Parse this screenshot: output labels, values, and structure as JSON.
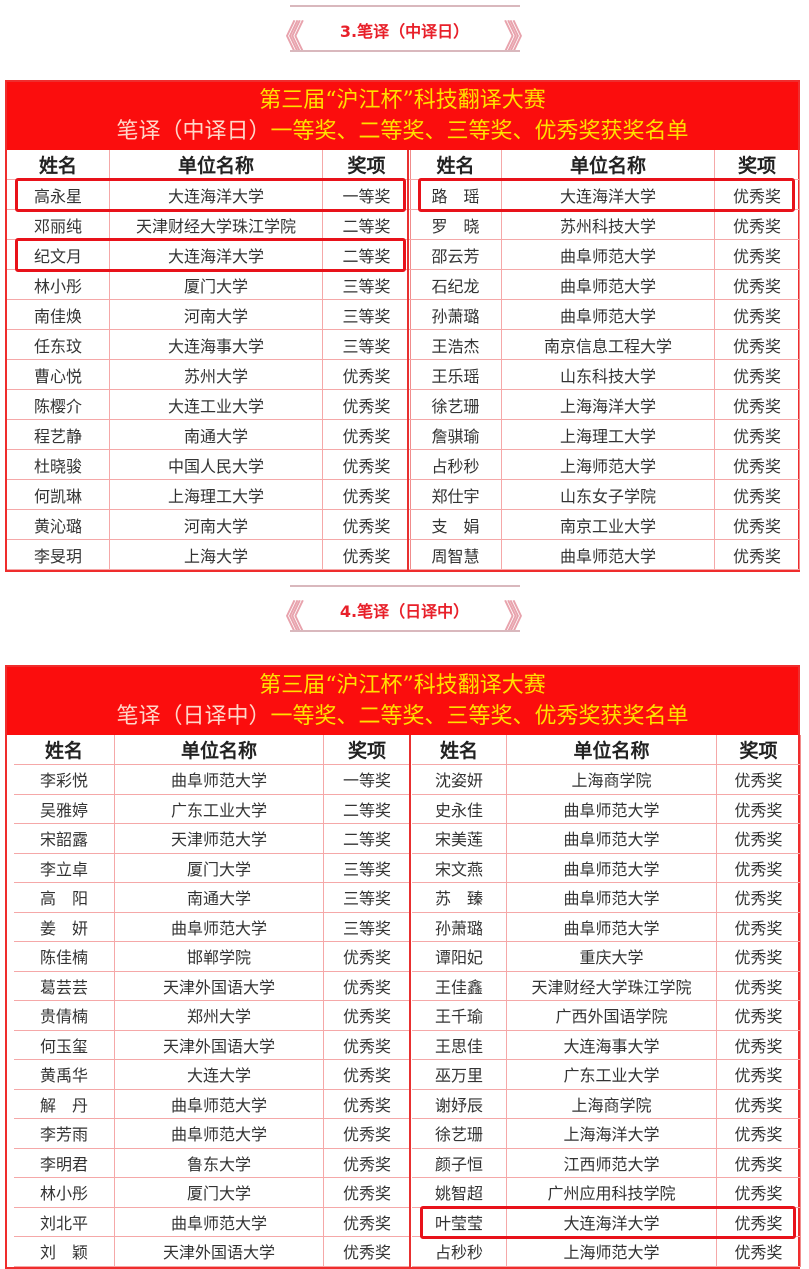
{
  "sections": [
    {
      "heading": "3.笔译（中译日）",
      "banner_line1": "第三届“沪江杯”科技翻译大赛",
      "banner_line2_category": "笔译（中译日）",
      "banner_line2_rest": "一等奖、二等奖、三等奖、优秀奖获奖名单",
      "columns": [
        "姓名",
        "单位名称",
        "奖项"
      ],
      "left": [
        [
          "高永星",
          "大连海洋大学",
          "一等奖"
        ],
        [
          "邓丽纯",
          "天津财经大学珠江学院",
          "二等奖"
        ],
        [
          "纪文月",
          "大连海洋大学",
          "二等奖"
        ],
        [
          "林小彤",
          "厦门大学",
          "三等奖"
        ],
        [
          "南佳焕",
          "河南大学",
          "三等奖"
        ],
        [
          "任东玟",
          "大连海事大学",
          "三等奖"
        ],
        [
          "曹心悦",
          "苏州大学",
          "优秀奖"
        ],
        [
          "陈樱介",
          "大连工业大学",
          "优秀奖"
        ],
        [
          "程艺静",
          "南通大学",
          "优秀奖"
        ],
        [
          "杜晓骏",
          "中国人民大学",
          "优秀奖"
        ],
        [
          "何凯琳",
          "上海理工大学",
          "优秀奖"
        ],
        [
          "黄沁璐",
          "河南大学",
          "优秀奖"
        ],
        [
          "李旻玥",
          "上海大学",
          "优秀奖"
        ]
      ],
      "right": [
        [
          "路　瑶",
          "大连海洋大学",
          "优秀奖"
        ],
        [
          "罗　晓",
          "苏州科技大学",
          "优秀奖"
        ],
        [
          "邵云芳",
          "曲阜师范大学",
          "优秀奖"
        ],
        [
          "石纪龙",
          "曲阜师范大学",
          "优秀奖"
        ],
        [
          "孙萧璐",
          "曲阜师范大学",
          "优秀奖"
        ],
        [
          "王浩杰",
          "南京信息工程大学",
          "优秀奖"
        ],
        [
          "王乐瑶",
          "山东科技大学",
          "优秀奖"
        ],
        [
          "徐艺珊",
          "上海海洋大学",
          "优秀奖"
        ],
        [
          "詹骐瑜",
          "上海理工大学",
          "优秀奖"
        ],
        [
          "占秒秒",
          "上海师范大学",
          "优秀奖"
        ],
        [
          "郑仕宇",
          "山东女子学院",
          "优秀奖"
        ],
        [
          "支　娟",
          "南京工业大学",
          "优秀奖"
        ],
        [
          "周智慧",
          "曲阜师范大学",
          "优秀奖"
        ]
      ]
    },
    {
      "heading": "4.笔译（日译中）",
      "banner_line1": "第三届“沪江杯”科技翻译大赛",
      "banner_line2_category": "笔译（日译中）",
      "banner_line2_rest": "一等奖、二等奖、三等奖、优秀奖获奖名单",
      "columns": [
        "姓名",
        "单位名称",
        "奖项"
      ],
      "left": [
        [
          "李彩悦",
          "曲阜师范大学",
          "一等奖"
        ],
        [
          "吴雅婷",
          "广东工业大学",
          "二等奖"
        ],
        [
          "宋韶露",
          "天津师范大学",
          "二等奖"
        ],
        [
          "李立卓",
          "厦门大学",
          "三等奖"
        ],
        [
          "高　阳",
          "南通大学",
          "三等奖"
        ],
        [
          "姜　妍",
          "曲阜师范大学",
          "三等奖"
        ],
        [
          "陈佳楠",
          "邯郸学院",
          "优秀奖"
        ],
        [
          "葛芸芸",
          "天津外国语大学",
          "优秀奖"
        ],
        [
          "贵倩楠",
          "郑州大学",
          "优秀奖"
        ],
        [
          "何玉玺",
          "天津外国语大学",
          "优秀奖"
        ],
        [
          "黄禹华",
          "大连大学",
          "优秀奖"
        ],
        [
          "解　丹",
          "曲阜师范大学",
          "优秀奖"
        ],
        [
          "李芳雨",
          "曲阜师范大学",
          "优秀奖"
        ],
        [
          "李明君",
          "鲁东大学",
          "优秀奖"
        ],
        [
          "林小彤",
          "厦门大学",
          "优秀奖"
        ],
        [
          "刘北平",
          "曲阜师范大学",
          "优秀奖"
        ],
        [
          "刘　颖",
          "天津外国语大学",
          "优秀奖"
        ]
      ],
      "right": [
        [
          "沈姿妍",
          "上海商学院",
          "优秀奖"
        ],
        [
          "史永佳",
          "曲阜师范大学",
          "优秀奖"
        ],
        [
          "宋美莲",
          "曲阜师范大学",
          "优秀奖"
        ],
        [
          "宋文燕",
          "曲阜师范大学",
          "优秀奖"
        ],
        [
          "苏　臻",
          "曲阜师范大学",
          "优秀奖"
        ],
        [
          "孙萧璐",
          "曲阜师范大学",
          "优秀奖"
        ],
        [
          "谭阳妃",
          "重庆大学",
          "优秀奖"
        ],
        [
          "王佳鑫",
          "天津财经大学珠江学院",
          "优秀奖"
        ],
        [
          "王千瑜",
          "广西外国语学院",
          "优秀奖"
        ],
        [
          "王思佳",
          "大连海事大学",
          "优秀奖"
        ],
        [
          "巫万里",
          "广东工业大学",
          "优秀奖"
        ],
        [
          "谢妤辰",
          "上海商学院",
          "优秀奖"
        ],
        [
          "徐艺珊",
          "上海海洋大学",
          "优秀奖"
        ],
        [
          "颜子恒",
          "江西师范大学",
          "优秀奖"
        ],
        [
          "姚智超",
          "广州应用科技学院",
          "优秀奖"
        ],
        [
          "叶莹莹",
          "大连海洋大学",
          "优秀奖"
        ],
        [
          "占秒秒",
          "上海师范大学",
          "优秀奖"
        ]
      ]
    }
  ],
  "colors": {
    "banner": "#fb0d0d",
    "banner_text": "#ffe000",
    "highlight": "#e8121a",
    "heading": "#e8202a"
  }
}
